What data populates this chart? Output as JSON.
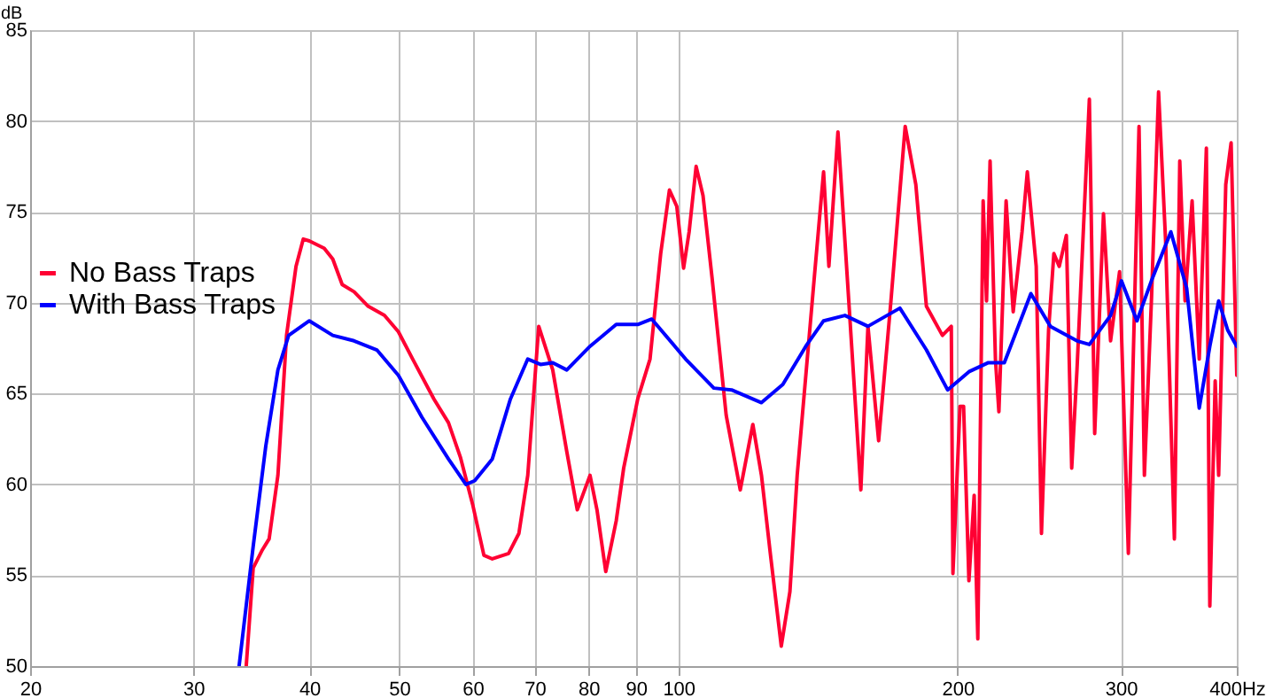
{
  "chart_data": {
    "type": "line",
    "ylabel": "dB",
    "log": "x",
    "grid": true,
    "legend": "left",
    "line_style": "solid",
    "marker": "none",
    "xlim": [
      20,
      400
    ],
    "xticks": [
      20,
      30,
      40,
      50,
      60,
      70,
      80,
      90,
      100,
      200,
      300,
      {
        "value": 400,
        "label": "400Hz"
      }
    ],
    "ylim": [
      50,
      85
    ],
    "yticks": [
      50,
      55,
      60,
      65,
      70,
      75,
      80,
      85
    ],
    "series": [
      {
        "name": "No Bass Traps",
        "color": "#ff0033",
        "x": [
          34.2,
          34.8,
          35.6,
          36.2,
          37.0,
          37.8,
          38.7,
          39.4,
          40.0,
          41.5,
          42.4,
          43.4,
          44.7,
          46.3,
          48.2,
          49.9,
          51.7,
          54.5,
          56.5,
          58.2,
          60.0,
          61.7,
          63.0,
          65.6,
          67.3,
          68.8,
          70.7,
          73.2,
          75.8,
          77.8,
          80.3,
          81.7,
          83.5,
          85.7,
          87.3,
          90.4,
          93.2,
          95.7,
          97.8,
          99.6,
          101.3,
          102.7,
          104.5,
          106.3,
          108.7,
          112.6,
          116.6,
          120.3,
          122.9,
          125.7,
          129.1,
          131.9,
          134.3,
          140.3,
          143.4,
          145.3,
          148.6,
          151.2,
          157.3,
          160.1,
          164.4,
          169.5,
          175.6,
          180.3,
          185.1,
          192.6,
          196.9,
          197.7,
          201.2,
          203.0,
          205.7,
          208.4,
          210.3,
          213.1,
          214.9,
          216.8,
          219.7,
          221.6,
          225.6,
          229.6,
          234.7,
          237.8,
          243.1,
          246.3,
          250.7,
          254.0,
          257.4,
          262.0,
          265.5,
          269.0,
          277.4,
          281.1,
          287.3,
          292.4,
          299.0,
          305.6,
          313.8,
          318.0,
          323.6,
          329.4,
          335.2,
          342.6,
          347.2,
          351.8,
          358.0,
          364.4,
          370.9,
          374.1,
          379.1,
          382.4,
          389.2,
          394.4,
          400
        ],
        "values": [
          50,
          55.4,
          56.4,
          57.0,
          60.5,
          68.2,
          72.0,
          73.5,
          73.4,
          73.0,
          72.4,
          71.0,
          70.6,
          69.8,
          69.3,
          68.4,
          66.9,
          64.7,
          63.4,
          61.5,
          58.9,
          56.1,
          55.9,
          56.2,
          57.3,
          60.5,
          68.7,
          66.3,
          61.8,
          58.6,
          60.5,
          58.6,
          55.2,
          58.0,
          60.9,
          64.7,
          66.9,
          72.7,
          76.2,
          75.3,
          71.9,
          73.9,
          77.5,
          75.9,
          71.4,
          63.8,
          59.7,
          63.3,
          60.5,
          56.1,
          51.1,
          54.1,
          60.5,
          71.7,
          77.2,
          72.0,
          79.4,
          73.4,
          59.7,
          68.7,
          62.4,
          70.1,
          79.7,
          76.5,
          69.8,
          68.2,
          68.7,
          55.1,
          64.3,
          64.3,
          54.7,
          59.4,
          51.5,
          75.6,
          70.1,
          77.8,
          66.9,
          64.0,
          75.6,
          69.5,
          73.9,
          77.2,
          72.0,
          57.3,
          68.5,
          72.7,
          72.0,
          73.7,
          60.9,
          66.3,
          81.2,
          62.8,
          74.9,
          67.9,
          71.7,
          56.2,
          79.7,
          60.5,
          70.1,
          81.6,
          73.4,
          57.0,
          77.8,
          70.1,
          75.6,
          66.9,
          78.5,
          53.3,
          65.7,
          60.5,
          76.5,
          78.8,
          66.0
        ]
      },
      {
        "name": "With Bass Traps",
        "color": "#0000ff",
        "x": [
          33.6,
          34.8,
          35.9,
          37.0,
          38.0,
          40.0,
          42.4,
          44.7,
          47.3,
          49.9,
          52.9,
          56.5,
          59.0,
          60.3,
          63.0,
          65.9,
          68.8,
          71.0,
          73.2,
          75.8,
          80.3,
          85.7,
          90.4,
          93.6,
          101.8,
          109.2,
          114.1,
          122.9,
          129.6,
          137.2,
          143.4,
          151.2,
          160.1,
          173.3,
          185.1,
          195.1,
          205.7,
          215.9,
          224.6,
          239.9,
          251.8,
          269.0,
          277.4,
          292.4,
          300.4,
          312.2,
          323.6,
          339.6,
          353.2,
          364.4,
          374.1,
          382.4,
          391.0,
          400
        ],
        "values": [
          50,
          56.6,
          62.1,
          66.3,
          68.2,
          69.0,
          68.2,
          67.9,
          67.4,
          66.0,
          63.7,
          61.4,
          60.0,
          60.2,
          61.4,
          64.7,
          66.9,
          66.6,
          66.7,
          66.3,
          67.6,
          68.8,
          68.8,
          69.1,
          66.9,
          65.3,
          65.2,
          64.5,
          65.5,
          67.6,
          69.0,
          69.3,
          68.7,
          69.7,
          67.4,
          65.2,
          66.2,
          66.7,
          66.7,
          70.5,
          68.7,
          67.9,
          67.7,
          69.3,
          71.2,
          69.0,
          71.2,
          73.9,
          70.8,
          64.2,
          67.6,
          70.1,
          68.5,
          67.6
        ]
      }
    ]
  }
}
